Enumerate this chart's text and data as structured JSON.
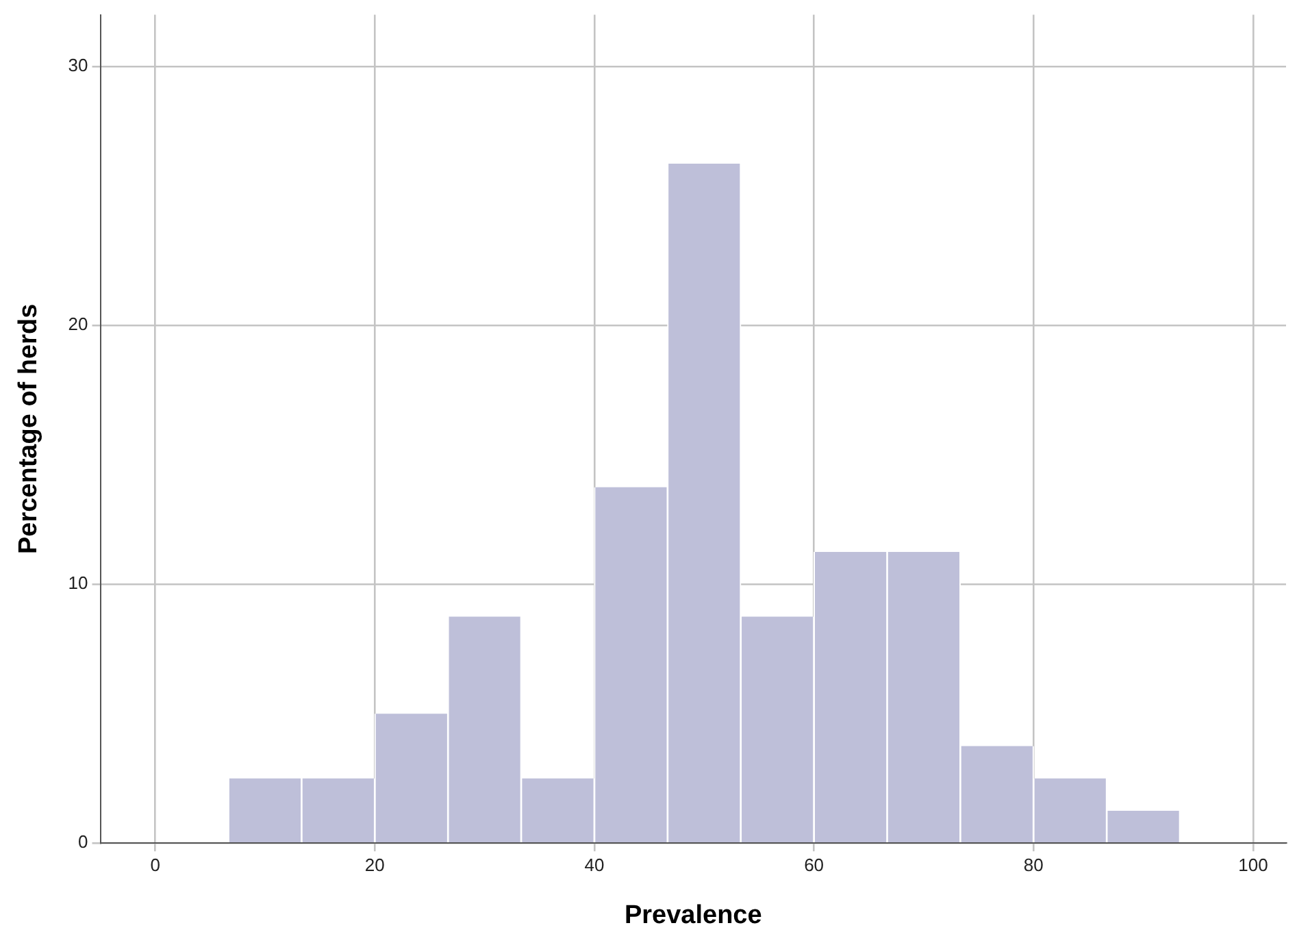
{
  "chart_data": {
    "type": "histogram",
    "xlabel": "Prevalence",
    "ylabel": "Percentage of herds",
    "bins": [
      6.67,
      13.33,
      20,
      26.67,
      33.33,
      40,
      46.67,
      53.33,
      60,
      66.67,
      73.33,
      80,
      86.67,
      93.33
    ],
    "values": [
      2.5,
      2.5,
      5,
      8.75,
      2.5,
      13.75,
      26.25,
      8.75,
      11.25,
      11.25,
      3.75,
      2.5,
      1.25
    ],
    "color": "#bebfd9",
    "xlim": [
      -5,
      103
    ],
    "xticks": [
      0,
      20,
      40,
      60,
      80,
      100
    ],
    "ylim": [
      0,
      32
    ],
    "yticks": [
      0,
      10,
      20,
      30
    ],
    "grid": true,
    "legend": false
  }
}
